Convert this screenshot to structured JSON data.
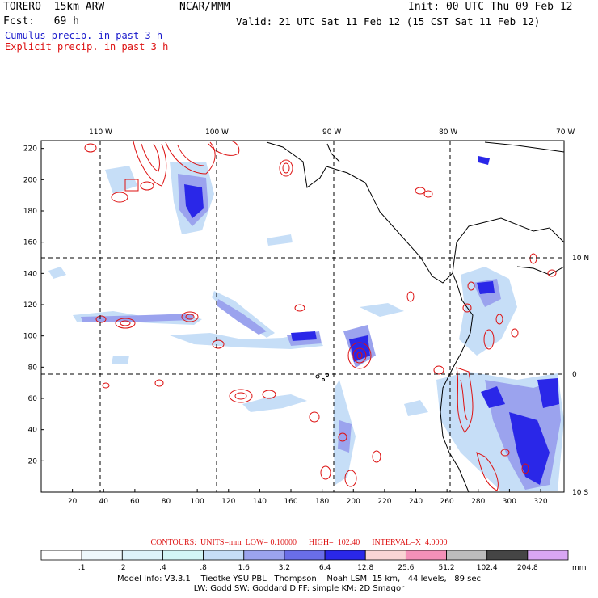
{
  "header": {
    "model": "TORERO  15km ARW",
    "org": "NCAR/MMM",
    "init": "Init: 00 UTC Thu 09 Feb 12",
    "fcst": "Fcst:   69 h",
    "valid": "Valid: 21 UTC Sat 11 Feb 12 (15 CST Sat 11 Feb 12)",
    "field1": "Cumulus precip. in past 3 h",
    "field2": "Explicit precip. in past 3 h",
    "field1_color": "#1a1acc",
    "field2_color": "#dd1111"
  },
  "map": {
    "lon_labels": [
      "110 W",
      "100 W",
      "90 W",
      "80 W",
      "70 W"
    ],
    "lat_labels": [
      "10 N",
      "0",
      "10 S"
    ],
    "x_ticks": [
      "20",
      "40",
      "60",
      "80",
      "100",
      "120",
      "140",
      "160",
      "180",
      "200",
      "220",
      "240",
      "260",
      "280",
      "300",
      "320"
    ],
    "y_ticks": [
      "20",
      "40",
      "60",
      "80",
      "100",
      "120",
      "140",
      "160",
      "180",
      "200",
      "220"
    ],
    "x_range": [
      0,
      335
    ],
    "y_range": [
      0,
      225
    ]
  },
  "contours": {
    "label": "CONTOURS:  UNITS=mm  LOW= 0.10000      HIGH=  102.40      INTERVAL=X  4.0000",
    "color": "#dd1111"
  },
  "colorbar": {
    "unit": "mm",
    "labels": [
      ".1",
      ".2",
      ".4",
      ".8",
      "1.6",
      "3.2",
      "6.4",
      "12.8",
      "25.6",
      "51.2",
      "102.4",
      "204.8"
    ],
    "colors": [
      "#ffffff",
      "#eef8fc",
      "#ddf3fa",
      "#d2f5f5",
      "#c6def7",
      "#9ba3ee",
      "#6a6ee8",
      "#2a27e8",
      "#fad4d4",
      "#f490b8",
      "#bdbdbd",
      "#454545",
      "#d9a6f4"
    ]
  },
  "footer": {
    "line1": "Model Info: V3.3.1    Tiedtke YSU PBL   Thompson    Noah LSM  15 km,   44 levels,   89 sec",
    "line2": "LW: Godd SW: Goddard DIFF: simple KM: 2D Smagor"
  }
}
